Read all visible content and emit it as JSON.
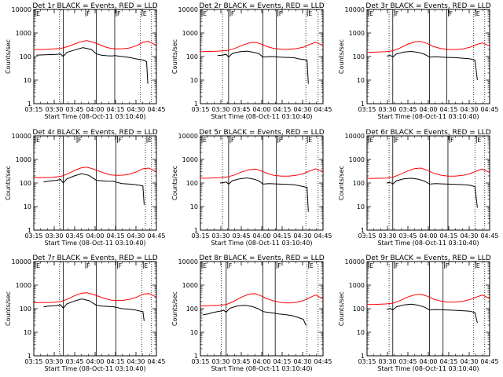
{
  "common": {
    "ylabel": "Counts/sec",
    "xlabel": "Start Time (08-Oct-11 03:10:40)",
    "x_ticks": [
      "03:15",
      "03:30",
      "03:45",
      "04:00",
      "04:15",
      "04:30",
      "04:45"
    ],
    "y_ticks": [
      "1",
      "10",
      "100",
      "1000",
      "10000"
    ],
    "colors": {
      "events": "#000000",
      "lld": "#ff0000",
      "axes": "#000000"
    }
  },
  "chart_data": [
    {
      "type": "line",
      "title": "Det 1r BLACK = Events, RED = LLD",
      "xlim": [
        0,
        100
      ],
      "ylim": [
        1,
        10000
      ],
      "yscale": "log",
      "flags": [
        {
          "label": "E",
          "x": 0
        },
        {
          "label": "F",
          "x": 41
        },
        {
          "label": "F",
          "x": 66
        },
        {
          "label": "E",
          "x": 87
        }
      ],
      "vlines_solid": [
        24,
        51,
        66
      ],
      "vlines_dotted": [
        21,
        87,
        96
      ],
      "series": [
        {
          "name": "Events",
          "x": [
            2,
            9,
            17,
            22,
            24,
            27,
            33,
            40,
            47,
            51,
            55,
            60,
            64,
            66,
            72,
            79,
            83,
            87,
            90,
            92,
            93
          ],
          "y": [
            115,
            118,
            122,
            128,
            100,
            150,
            188,
            240,
            200,
            130,
            115,
            108,
            106,
            110,
            100,
            90,
            80,
            75,
            70,
            60,
            7
          ]
        },
        {
          "name": "LLD",
          "x": [
            0,
            8,
            16,
            22,
            28,
            33,
            38,
            43,
            48,
            53,
            58,
            63,
            68,
            73,
            78,
            84,
            89,
            93,
            97,
            100
          ],
          "y": [
            200,
            200,
            210,
            220,
            270,
            340,
            420,
            480,
            410,
            330,
            260,
            220,
            210,
            215,
            230,
            290,
            400,
            450,
            360,
            290
          ]
        }
      ]
    },
    {
      "type": "line",
      "title": "Det 2r BLACK = Events, RED = LLD",
      "xlim": [
        0,
        100
      ],
      "ylim": [
        1,
        10000
      ],
      "yscale": "log",
      "flags": [
        {
          "label": "E",
          "x": 0
        },
        {
          "label": "F",
          "x": 23
        },
        {
          "label": "F",
          "x": 62
        },
        {
          "label": "E",
          "x": 86
        }
      ],
      "vlines_solid": [
        23,
        51,
        62
      ],
      "vlines_dotted": [
        18,
        86,
        96
      ],
      "series": [
        {
          "name": "Events",
          "x": [
            14,
            18,
            21,
            23,
            26,
            32,
            38,
            44,
            48,
            51,
            56,
            61,
            65,
            70,
            76,
            80,
            84,
            87,
            88
          ],
          "y": [
            110,
            115,
            125,
            95,
            135,
            160,
            170,
            150,
            130,
            95,
            100,
            98,
            95,
            92,
            90,
            80,
            75,
            70,
            7
          ]
        },
        {
          "name": "LLD",
          "x": [
            0,
            8,
            15,
            22,
            28,
            34,
            40,
            45,
            50,
            55,
            60,
            66,
            72,
            78,
            84,
            90,
            94,
            100
          ],
          "y": [
            160,
            165,
            170,
            180,
            220,
            300,
            380,
            400,
            330,
            260,
            220,
            205,
            205,
            215,
            250,
            340,
            400,
            300
          ]
        }
      ]
    },
    {
      "type": "line",
      "title": "Det 3r BLACK = Events, RED = LLD",
      "xlim": [
        0,
        100
      ],
      "ylim": [
        1,
        10000
      ],
      "yscale": "log",
      "flags": [
        {
          "label": "E",
          "x": 0
        },
        {
          "label": "F",
          "x": 21
        },
        {
          "label": "F",
          "x": 65
        },
        {
          "label": "E",
          "x": 87
        }
      ],
      "vlines_solid": [
        21,
        51,
        65
      ],
      "vlines_dotted": [
        18,
        87,
        96
      ],
      "series": [
        {
          "name": "Events",
          "x": [
            16,
            19,
            21,
            24,
            30,
            36,
            42,
            47,
            51,
            56,
            61,
            66,
            72,
            78,
            84,
            88,
            90
          ],
          "y": [
            105,
            112,
            95,
            130,
            155,
            165,
            150,
            125,
            95,
            98,
            95,
            92,
            90,
            85,
            80,
            70,
            10
          ]
        },
        {
          "name": "LLD",
          "x": [
            0,
            8,
            15,
            21,
            27,
            33,
            39,
            44,
            49,
            54,
            60,
            66,
            72,
            78,
            84,
            90,
            94,
            100
          ],
          "y": [
            150,
            155,
            160,
            175,
            230,
            330,
            420,
            440,
            360,
            270,
            220,
            200,
            200,
            210,
            250,
            330,
            380,
            280
          ]
        }
      ]
    },
    {
      "type": "line",
      "title": "Det 4r BLACK = Events, RED = LLD",
      "xlim": [
        0,
        100
      ],
      "ylim": [
        1,
        10000
      ],
      "yscale": "log",
      "flags": [
        {
          "label": "E",
          "x": 0
        },
        {
          "label": "F",
          "x": 34
        },
        {
          "label": "F",
          "x": 67
        },
        {
          "label": "E",
          "x": 91
        }
      ],
      "vlines_solid": [
        24,
        51,
        67
      ],
      "vlines_dotted": [
        21,
        91,
        96
      ],
      "series": [
        {
          "name": "Events",
          "x": [
            8,
            12,
            18,
            22,
            24,
            27,
            33,
            39,
            45,
            51,
            55,
            60,
            65,
            67,
            72,
            78,
            83,
            86,
            89,
            90
          ],
          "y": [
            110,
            120,
            130,
            140,
            100,
            150,
            200,
            250,
            210,
            130,
            125,
            120,
            118,
            110,
            95,
            90,
            85,
            80,
            75,
            12
          ]
        },
        {
          "name": "LLD",
          "x": [
            0,
            8,
            15,
            22,
            28,
            33,
            38,
            43,
            48,
            53,
            58,
            63,
            68,
            73,
            78,
            84,
            89,
            94,
            100
          ],
          "y": [
            170,
            170,
            175,
            190,
            250,
            340,
            430,
            470,
            400,
            320,
            260,
            220,
            210,
            215,
            240,
            300,
            400,
            430,
            300
          ]
        }
      ]
    },
    {
      "type": "line",
      "title": "Det 5r BLACK = Events, RED = LLD",
      "xlim": [
        0,
        100
      ],
      "ylim": [
        1,
        10000
      ],
      "yscale": "log",
      "flags": [
        {
          "label": "E",
          "x": 0
        },
        {
          "label": "F",
          "x": 23
        },
        {
          "label": "F",
          "x": 62
        },
        {
          "label": "E",
          "x": 86
        }
      ],
      "vlines_solid": [
        23,
        51,
        62
      ],
      "vlines_dotted": [
        18,
        86,
        96
      ],
      "series": [
        {
          "name": "Events",
          "x": [
            16,
            19,
            21,
            23,
            26,
            32,
            38,
            44,
            48,
            51,
            56,
            61,
            65,
            70,
            76,
            80,
            84,
            87,
            88
          ],
          "y": [
            100,
            105,
            110,
            90,
            125,
            150,
            165,
            145,
            120,
            90,
            95,
            92,
            90,
            88,
            85,
            78,
            70,
            65,
            6
          ]
        },
        {
          "name": "LLD",
          "x": [
            0,
            8,
            15,
            22,
            28,
            34,
            40,
            45,
            50,
            55,
            60,
            66,
            72,
            78,
            84,
            90,
            94,
            100
          ],
          "y": [
            160,
            162,
            168,
            180,
            220,
            300,
            370,
            390,
            320,
            250,
            210,
            195,
            195,
            210,
            250,
            340,
            400,
            300
          ]
        }
      ]
    },
    {
      "type": "line",
      "title": "Det 6r BLACK = Events, RED = LLD",
      "xlim": [
        0,
        100
      ],
      "ylim": [
        1,
        10000
      ],
      "yscale": "log",
      "flags": [
        {
          "label": "E",
          "x": 0
        },
        {
          "label": "F",
          "x": 21
        },
        {
          "label": "F",
          "x": 66
        },
        {
          "label": "E",
          "x": 88
        }
      ],
      "vlines_solid": [
        21,
        51,
        66
      ],
      "vlines_dotted": [
        18,
        88,
        96
      ],
      "series": [
        {
          "name": "Events",
          "x": [
            16,
            19,
            21,
            24,
            30,
            36,
            42,
            47,
            51,
            56,
            61,
            66,
            72,
            78,
            84,
            88,
            90
          ],
          "y": [
            100,
            108,
            90,
            125,
            150,
            160,
            145,
            120,
            90,
            95,
            92,
            90,
            88,
            85,
            80,
            70,
            9
          ]
        },
        {
          "name": "LLD",
          "x": [
            0,
            8,
            15,
            21,
            27,
            33,
            39,
            44,
            49,
            54,
            60,
            66,
            72,
            78,
            84,
            90,
            94,
            100
          ],
          "y": [
            155,
            158,
            162,
            175,
            230,
            320,
            410,
            430,
            350,
            265,
            215,
            195,
            195,
            210,
            250,
            330,
            390,
            280
          ]
        }
      ]
    },
    {
      "type": "line",
      "title": "Det 7r BLACK = Events, RED = LLD",
      "xlim": [
        0,
        100
      ],
      "ylim": [
        1,
        10000
      ],
      "yscale": "log",
      "flags": [
        {
          "label": "E",
          "x": 0
        },
        {
          "label": "F",
          "x": 41
        },
        {
          "label": "F",
          "x": 67
        },
        {
          "label": "E",
          "x": 88
        }
      ],
      "vlines_solid": [
        24,
        51,
        67
      ],
      "vlines_dotted": [
        21,
        88,
        96
      ],
      "series": [
        {
          "name": "Events",
          "x": [
            8,
            12,
            18,
            22,
            24,
            27,
            33,
            39,
            45,
            51,
            55,
            60,
            65,
            67,
            72,
            78,
            83,
            86,
            89,
            90
          ],
          "y": [
            120,
            128,
            135,
            145,
            105,
            160,
            210,
            260,
            220,
            140,
            130,
            125,
            120,
            115,
            100,
            95,
            88,
            80,
            75,
            30
          ]
        },
        {
          "name": "LLD",
          "x": [
            0,
            8,
            15,
            22,
            28,
            33,
            38,
            43,
            48,
            53,
            58,
            63,
            68,
            73,
            78,
            84,
            89,
            94,
            100
          ],
          "y": [
            180,
            180,
            185,
            200,
            260,
            350,
            440,
            480,
            410,
            330,
            270,
            230,
            220,
            225,
            250,
            310,
            410,
            440,
            310
          ]
        }
      ]
    },
    {
      "type": "line",
      "title": "Det 8r BLACK = Events, RED = LLD",
      "xlim": [
        0,
        100
      ],
      "ylim": [
        1,
        10000
      ],
      "yscale": "log",
      "flags": [
        {
          "label": "E",
          "x": 0
        },
        {
          "label": "F",
          "x": 21
        },
        {
          "label": "F",
          "x": 61
        },
        {
          "label": "E",
          "x": 87
        }
      ],
      "vlines_solid": [
        21,
        51,
        61
      ],
      "vlines_dotted": [
        17,
        87,
        96
      ],
      "series": [
        {
          "name": "Events",
          "x": [
            2,
            6,
            10,
            14,
            17,
            19,
            21,
            24,
            30,
            36,
            42,
            47,
            51,
            55,
            60,
            64,
            70,
            75,
            78,
            81,
            84,
            86
          ],
          "y": [
            55,
            60,
            68,
            75,
            80,
            85,
            70,
            105,
            130,
            140,
            125,
            100,
            75,
            70,
            65,
            60,
            55,
            50,
            45,
            40,
            35,
            20
          ]
        },
        {
          "name": "LLD",
          "x": [
            0,
            8,
            15,
            21,
            27,
            33,
            39,
            44,
            49,
            54,
            60,
            66,
            72,
            78,
            84,
            90,
            94,
            100
          ],
          "y": [
            130,
            135,
            140,
            150,
            200,
            300,
            400,
            440,
            360,
            270,
            210,
            180,
            175,
            185,
            220,
            310,
            380,
            260
          ]
        }
      ]
    },
    {
      "type": "line",
      "title": "Det 9r BLACK = Events, RED = LLD",
      "xlim": [
        0,
        100
      ],
      "ylim": [
        1,
        10000
      ],
      "yscale": "log",
      "flags": [
        {
          "label": "E",
          "x": 0
        },
        {
          "label": "F",
          "x": 21
        },
        {
          "label": "F",
          "x": 62
        },
        {
          "label": "E",
          "x": 87
        }
      ],
      "vlines_solid": [
        21,
        51,
        62
      ],
      "vlines_dotted": [
        18,
        87,
        96
      ],
      "series": [
        {
          "name": "Events",
          "x": [
            16,
            19,
            21,
            24,
            30,
            36,
            42,
            47,
            51,
            56,
            61,
            66,
            72,
            78,
            84,
            88,
            90
          ],
          "y": [
            95,
            102,
            88,
            120,
            145,
            155,
            140,
            115,
            88,
            92,
            90,
            88,
            85,
            82,
            78,
            68,
            25
          ]
        },
        {
          "name": "LLD",
          "x": [
            0,
            8,
            15,
            21,
            27,
            33,
            39,
            44,
            49,
            54,
            60,
            66,
            72,
            78,
            84,
            90,
            94,
            100
          ],
          "y": [
            150,
            152,
            158,
            170,
            220,
            310,
            390,
            410,
            340,
            260,
            210,
            190,
            190,
            205,
            245,
            320,
            380,
            270
          ]
        }
      ]
    }
  ]
}
